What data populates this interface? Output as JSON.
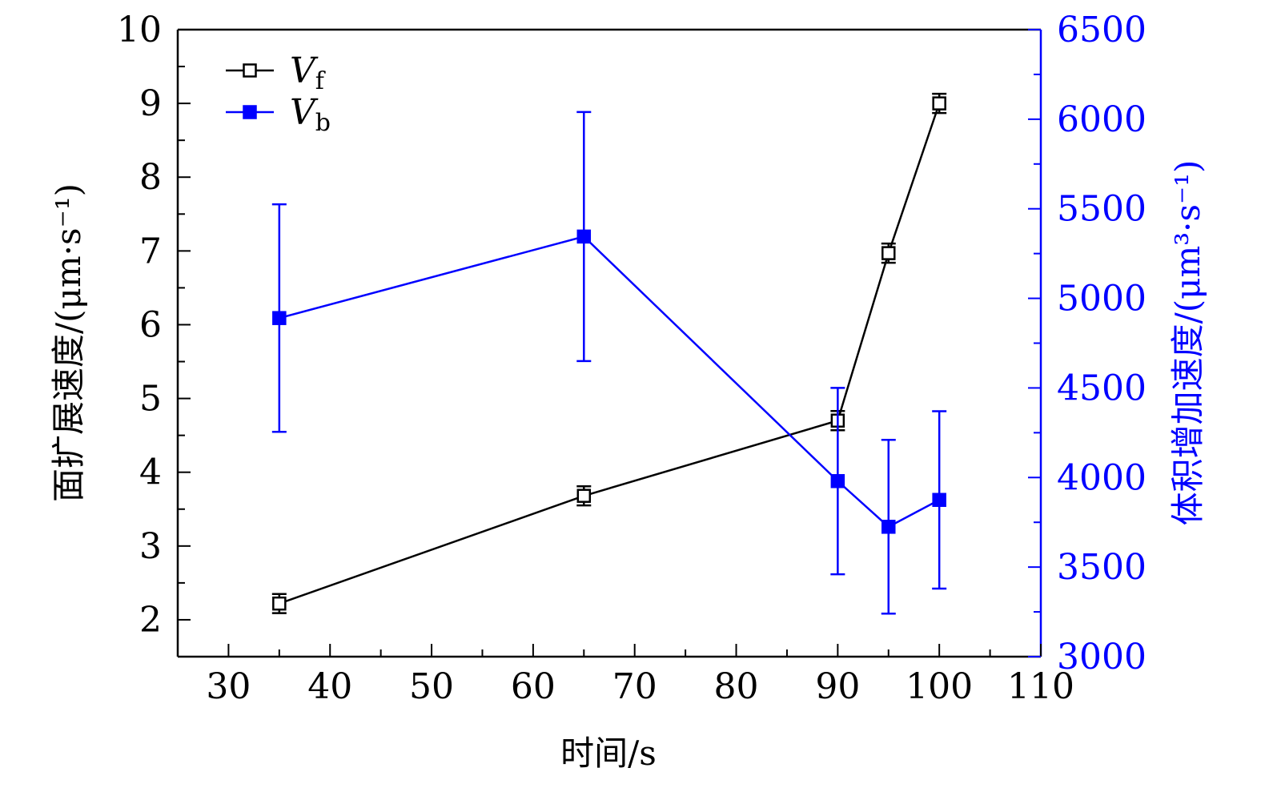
{
  "chart_data": {
    "type": "line",
    "x_axis": {
      "label": "时间/s",
      "range": [
        25,
        110
      ],
      "ticks": [
        30,
        40,
        50,
        60,
        70,
        80,
        90,
        100,
        110
      ],
      "minor_ticks": [
        35,
        45,
        55,
        65,
        75,
        85,
        95,
        105
      ]
    },
    "y_left": {
      "label": "面扩展速度/(μm·s⁻¹)",
      "range": [
        1.5,
        10
      ],
      "ticks": [
        2,
        3,
        4,
        5,
        6,
        7,
        8,
        9,
        10
      ],
      "color": "#000000"
    },
    "y_right": {
      "label": "体积增加速度/(μm³·s⁻¹)",
      "range": [
        3000,
        6500
      ],
      "ticks": [
        3000,
        3500,
        4000,
        4500,
        5000,
        5500,
        6000,
        6500
      ],
      "color": "#0000ff"
    },
    "series": [
      {
        "name": "Vf",
        "name_main": "V",
        "name_sub": "f",
        "axis": "left",
        "color": "#000000",
        "marker": "open-square",
        "x": [
          35,
          65,
          90,
          95,
          100
        ],
        "y": [
          2.22,
          3.68,
          4.7,
          6.97,
          9.0
        ],
        "err": [
          0.13,
          0.13,
          0.13,
          0.13,
          0.13
        ]
      },
      {
        "name": "Vb",
        "name_main": "V",
        "name_sub": "b",
        "axis": "right",
        "color": "#0000ff",
        "marker": "filled-square",
        "x": [
          35,
          65,
          90,
          95,
          100
        ],
        "y": [
          4890,
          5345,
          3980,
          3725,
          3875
        ],
        "err": [
          635,
          695,
          520,
          485,
          495
        ]
      }
    ],
    "legend_position": "top-left"
  }
}
